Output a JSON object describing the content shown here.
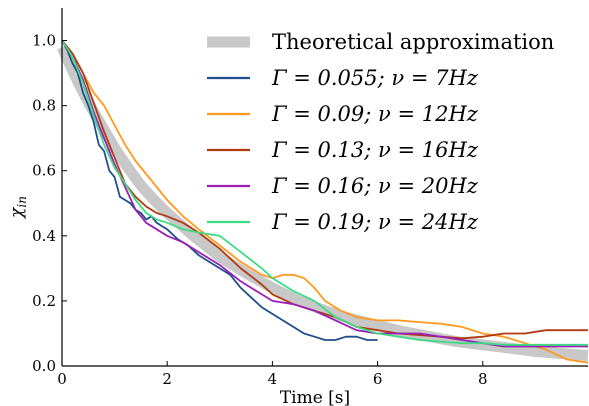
{
  "chart_data": {
    "type": "line",
    "title": "",
    "xlabel": "Time [s]",
    "ylabel": "χ_in",
    "xlim": [
      0,
      10
    ],
    "ylim": [
      0.0,
      1.1
    ],
    "xticks": [
      0,
      2,
      4,
      6,
      8
    ],
    "yticks": [
      0.0,
      0.2,
      0.4,
      0.6,
      0.8,
      1.0
    ],
    "xtick_labels": [
      "0",
      "2",
      "4",
      "6",
      "8"
    ],
    "ytick_labels": [
      "0.0",
      "0.2",
      "0.4",
      "0.6",
      "0.8",
      "1.0"
    ],
    "grid": false,
    "legend_position": "top-right",
    "series": [
      {
        "name": "Theoretical approximation",
        "color": "#c8c8c8",
        "style": "thick",
        "x": [
          0,
          0.25,
          0.5,
          0.75,
          1,
          1.25,
          1.5,
          1.75,
          2,
          2.5,
          3,
          3.5,
          4,
          4.5,
          5,
          5.5,
          6,
          6.5,
          7,
          7.5,
          8,
          8.5,
          9,
          9.5,
          10
        ],
        "y": [
          0.98,
          0.89,
          0.81,
          0.74,
          0.67,
          0.61,
          0.555,
          0.51,
          0.47,
          0.4,
          0.335,
          0.285,
          0.24,
          0.2,
          0.17,
          0.145,
          0.125,
          0.105,
          0.09,
          0.075,
          0.065,
          0.055,
          0.045,
          0.038,
          0.032
        ]
      },
      {
        "name": "Γ = 0.055; ν = 7Hz",
        "color": "#1f4e8c",
        "x": [
          0,
          0.1,
          0.2,
          0.3,
          0.4,
          0.5,
          0.6,
          0.7,
          0.8,
          0.9,
          1.0,
          1.1,
          1.2,
          1.3,
          1.4,
          1.5,
          1.6,
          1.7,
          1.8,
          1.9,
          2.0,
          2.2,
          2.4,
          2.6,
          2.8,
          3.0,
          3.2,
          3.4,
          3.6,
          3.8,
          4.0,
          4.2,
          4.4,
          4.6,
          4.8,
          5.0,
          5.2,
          5.4,
          5.6,
          5.8,
          6.0
        ],
        "y": [
          1.0,
          0.97,
          0.93,
          0.9,
          0.84,
          0.8,
          0.75,
          0.68,
          0.66,
          0.6,
          0.58,
          0.52,
          0.51,
          0.5,
          0.48,
          0.47,
          0.45,
          0.46,
          0.44,
          0.43,
          0.42,
          0.39,
          0.37,
          0.34,
          0.32,
          0.3,
          0.28,
          0.24,
          0.21,
          0.18,
          0.16,
          0.14,
          0.12,
          0.1,
          0.09,
          0.08,
          0.08,
          0.09,
          0.09,
          0.08,
          0.08
        ]
      },
      {
        "name": "Γ = 0.09; ν = 12Hz",
        "color": "#ff9a1f",
        "x": [
          0,
          0.2,
          0.4,
          0.6,
          0.8,
          1.0,
          1.2,
          1.4,
          1.6,
          1.8,
          2.0,
          2.3,
          2.6,
          3.0,
          3.4,
          3.8,
          4.0,
          4.2,
          4.4,
          4.6,
          4.8,
          5.0,
          5.3,
          5.6,
          6.0,
          6.4,
          6.8,
          7.2,
          7.6,
          8.0,
          8.4,
          8.8,
          9.2,
          9.6,
          10.0
        ],
        "y": [
          1.0,
          0.96,
          0.9,
          0.84,
          0.8,
          0.74,
          0.68,
          0.63,
          0.59,
          0.55,
          0.51,
          0.46,
          0.42,
          0.37,
          0.32,
          0.28,
          0.27,
          0.28,
          0.28,
          0.27,
          0.24,
          0.2,
          0.17,
          0.15,
          0.14,
          0.14,
          0.135,
          0.13,
          0.12,
          0.1,
          0.09,
          0.07,
          0.05,
          0.02,
          0.01
        ]
      },
      {
        "name": "Γ = 0.13; ν = 16Hz",
        "color": "#b03a12",
        "x": [
          0,
          0.2,
          0.4,
          0.6,
          0.8,
          1.0,
          1.2,
          1.4,
          1.6,
          1.8,
          2.0,
          2.3,
          2.6,
          3.0,
          3.4,
          3.8,
          4.0,
          4.4,
          4.8,
          5.2,
          5.6,
          6.0,
          6.4,
          6.8,
          7.2,
          7.6,
          8.0,
          8.4,
          8.8,
          9.2,
          9.6,
          10.0
        ],
        "y": [
          1.0,
          0.96,
          0.9,
          0.81,
          0.72,
          0.64,
          0.56,
          0.52,
          0.49,
          0.47,
          0.46,
          0.44,
          0.41,
          0.36,
          0.3,
          0.25,
          0.22,
          0.19,
          0.17,
          0.15,
          0.12,
          0.11,
          0.1,
          0.095,
          0.09,
          0.085,
          0.09,
          0.1,
          0.1,
          0.11,
          0.11,
          0.11
        ]
      },
      {
        "name": "Γ = 0.16; ν = 20Hz",
        "color": "#9b1fb5",
        "x": [
          0,
          0.2,
          0.4,
          0.6,
          0.8,
          1.0,
          1.2,
          1.4,
          1.6,
          1.8,
          2.0,
          2.3,
          2.6,
          3.0,
          3.4,
          3.8,
          4.0,
          4.4,
          4.8,
          5.2,
          5.6,
          6.0,
          6.4,
          6.8,
          7.2,
          7.6,
          8.0,
          8.4,
          8.8,
          9.2,
          9.6,
          10.0
        ],
        "y": [
          1.0,
          0.95,
          0.88,
          0.78,
          0.7,
          0.62,
          0.55,
          0.48,
          0.44,
          0.42,
          0.4,
          0.38,
          0.35,
          0.31,
          0.26,
          0.22,
          0.2,
          0.19,
          0.17,
          0.14,
          0.11,
          0.1,
          0.1,
          0.1,
          0.09,
          0.08,
          0.07,
          0.06,
          0.06,
          0.06,
          0.06,
          0.06
        ]
      },
      {
        "name": "Γ = 0.19; ν = 24Hz",
        "color": "#3ddc84",
        "x": [
          0,
          0.2,
          0.4,
          0.6,
          0.8,
          1.0,
          1.2,
          1.4,
          1.6,
          1.8,
          2.0,
          2.3,
          2.6,
          3.0,
          3.4,
          3.8,
          4.0,
          4.4,
          4.8,
          5.2,
          5.6,
          6.0,
          6.4,
          6.8,
          7.2,
          7.6,
          8.0,
          8.4,
          8.8,
          9.2,
          9.6,
          10.0
        ],
        "y": [
          1.0,
          0.95,
          0.87,
          0.77,
          0.68,
          0.61,
          0.56,
          0.51,
          0.47,
          0.45,
          0.44,
          0.42,
          0.41,
          0.4,
          0.35,
          0.3,
          0.27,
          0.23,
          0.2,
          0.15,
          0.12,
          0.1,
          0.09,
          0.08,
          0.075,
          0.07,
          0.07,
          0.065,
          0.065,
          0.065,
          0.065,
          0.065
        ]
      }
    ]
  }
}
